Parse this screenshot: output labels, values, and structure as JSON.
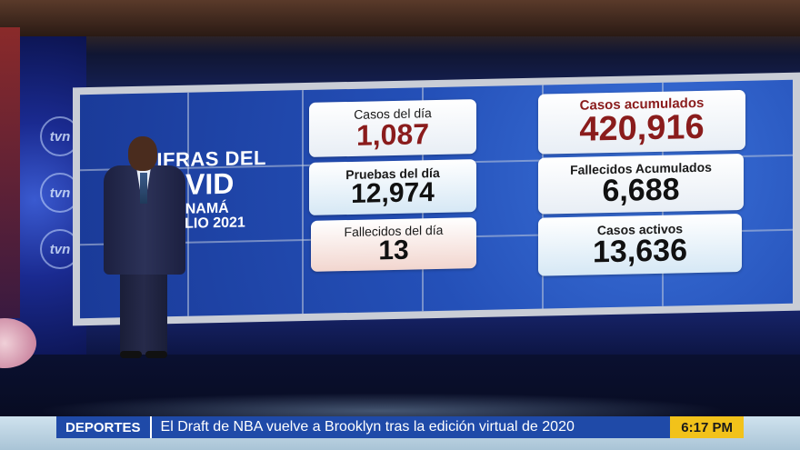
{
  "screen": {
    "headline_lines": [
      "CIFRAS DEL",
      "COVID",
      "EN PANAMÁ",
      "DE JULIO 2021"
    ],
    "cards": [
      {
        "label": "Casos del día",
        "value": "1,087"
      },
      {
        "label": "Pruebas del día",
        "value": "12,974"
      },
      {
        "label": "Fallecidos del día",
        "value": "13"
      },
      {
        "label": "Casos acumulados",
        "value": "420,916"
      },
      {
        "label": "Fallecidos Acumulados",
        "value": "6,688"
      },
      {
        "label": "Casos activos",
        "value": "13,636"
      }
    ],
    "logo_text": "tvn"
  },
  "ticker": {
    "section": "DEPORTES",
    "headline": "El Draft de NBA vuelve a Brooklyn tras la edición virtual de 2020",
    "time": "6:17 PM"
  },
  "colors": {
    "accent_blue": "#1f4aa8",
    "time_yellow": "#f2c21a",
    "red_value": "#8a1c1c"
  }
}
